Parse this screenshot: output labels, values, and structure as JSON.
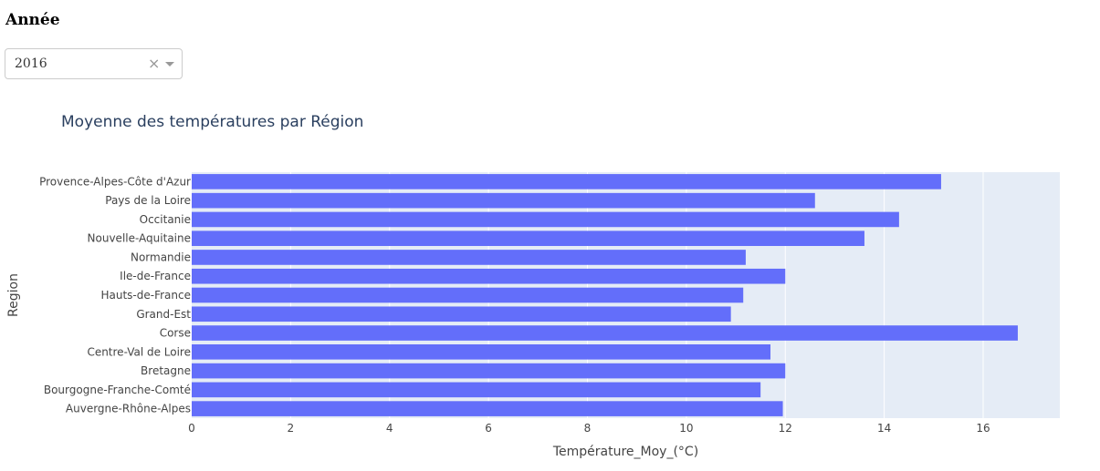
{
  "filter": {
    "label": "Année",
    "selected": "2016"
  },
  "icons": {
    "clear": "×",
    "dropdown": "chevron-down-icon"
  },
  "colors": {
    "bar": "#636efa",
    "plot_bg": "#e5ecf6",
    "grid": "#ffffff",
    "text": "#444444",
    "title": "#2a3f5f"
  },
  "chart_data": {
    "type": "bar",
    "orientation": "horizontal",
    "title": "Moyenne des températures par Région",
    "xlabel": "Température_Moy_(°C)",
    "ylabel": "Region",
    "xlim": [
      0,
      17.55
    ],
    "xticks": [
      0,
      2,
      4,
      6,
      8,
      10,
      12,
      14,
      16
    ],
    "grid": true,
    "categories": [
      "Auvergne-Rhône-Alpes",
      "Bourgogne-Franche-Comté",
      "Bretagne",
      "Centre-Val de Loire",
      "Corse",
      "Grand-Est",
      "Hauts-de-France",
      "Ile-de-France",
      "Normandie",
      "Nouvelle-Aquitaine",
      "Occitanie",
      "Pays de la Loire",
      "Provence-Alpes-Côte d'Azur"
    ],
    "values": [
      11.95,
      11.5,
      12.0,
      11.7,
      16.7,
      10.9,
      11.15,
      12.0,
      11.2,
      13.6,
      14.3,
      12.6,
      15.15
    ]
  }
}
